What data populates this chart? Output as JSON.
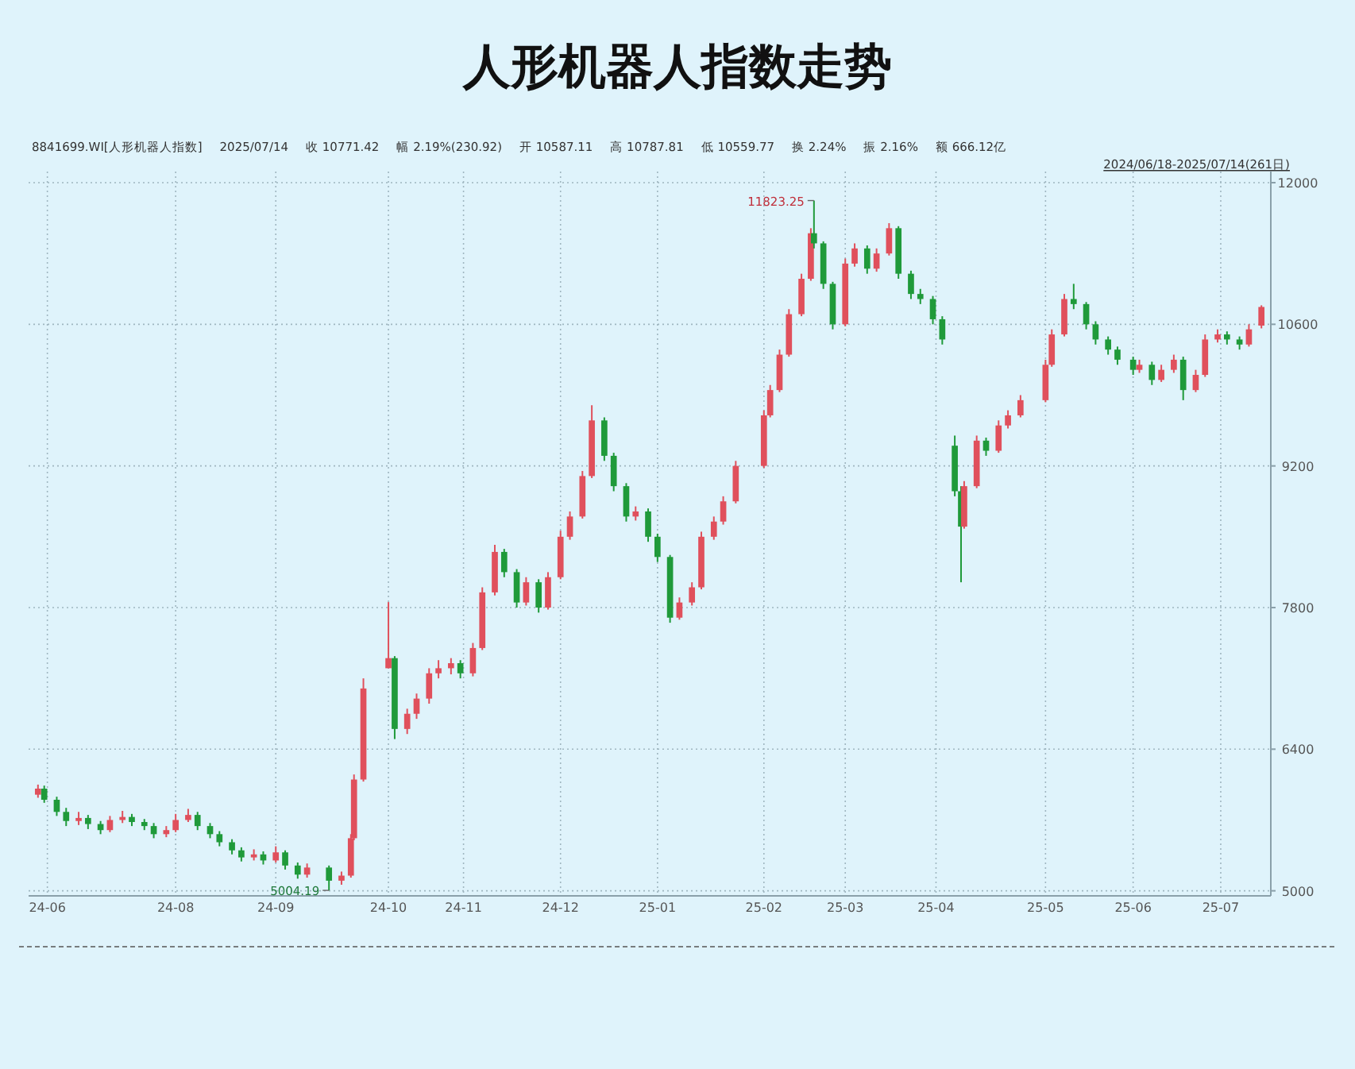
{
  "chart_data": {
    "type": "candlestick",
    "title": "人形机器人指数走势",
    "annotations": [
      "8841699.WI[人形机器人指数]",
      "2025/07/14",
      "收 10771.42",
      "幅 2.19%(230.92)",
      "开 10587.11",
      "高 10787.81",
      "低 10559.77",
      "换 2.24%",
      "振 2.16%",
      "额 666.12亿",
      "2024/06/18-2025/07/14(261日)",
      {
        "text": "11823.25",
        "x": "2025-02-21",
        "y": 11823.25
      },
      {
        "text": "5004.19",
        "x": "2024-09-19",
        "y": 5004.19
      }
    ],
    "colors": [
      "#e0505c",
      "#1f9a3a",
      "#1f9a3a",
      "#1f9a3a",
      "#e0505c",
      "#1f9a3a",
      "#1f9a3a",
      "#e0505c",
      "#e0505c",
      "#1f9a3a",
      "#1f9a3a",
      "#1f9a3a",
      "#e0505c",
      "#e0505c",
      "#e0505c",
      "#1f9a3a",
      "#1f9a3a",
      "#1f9a3a",
      "#1f9a3a",
      "#1f9a3a",
      "#e0505c",
      "#1f9a3a",
      "#e0505c",
      "#1f9a3a",
      "#1f9a3a",
      "#e0505c",
      "#1f9a3a",
      "#e0505c",
      "#e0505c",
      "#e0505c",
      "#e0505c",
      "#e0505c",
      "#1f9a3a",
      "#e0505c",
      "#e0505c",
      "#e0505c",
      "#e0505c",
      "#e0505c",
      "#1f9a3a",
      "#e0505c",
      "#e0505c",
      "#e0505c",
      "#1f9a3a",
      "#1f9a3a",
      "#e0505c",
      "#1f9a3a",
      "#e0505c",
      "#e0505c",
      "#e0505c",
      "#e0505c",
      "#e0505c",
      "#1f9a3a",
      "#1f9a3a",
      "#1f9a3a",
      "#e0505c",
      "#1f9a3a",
      "#1f9a3a",
      "#1f9a3a",
      "#e0505c",
      "#e0505c",
      "#e0505c",
      "#e0505c",
      "#e0505c",
      "#e0505c",
      "#e0505c",
      "#e0505c",
      "#e0505c",
      "#e0505c",
      "#e0505c",
      "#e0505c",
      "#1f9a3a",
      "#1f9a3a",
      "#1f9a3a",
      "#e0505c",
      "#e0505c",
      "#1f9a3a",
      "#e0505c",
      "#e0505c",
      "#1f9a3a",
      "#1f9a3a",
      "#1f9a3a",
      "#1f9a3a",
      "#1f9a3a",
      "#1f9a3a",
      "#1f9a3a",
      "#e0505c",
      "#e0505c",
      "#1f9a3a",
      "#e0505c",
      "#e0505c",
      "#e0505c",
      "#e0505c",
      "#e0505c",
      "#e0505c",
      "#1f9a3a",
      "#1f9a3a",
      "#1f9a3a",
      "#1f9a3a",
      "#1f9a3a",
      "#1f9a3a",
      "#e0505c",
      "#1f9a3a",
      "#e0505c",
      "#e0505c",
      "#1f9a3a",
      "#e0505c",
      "#e0505c",
      "#e0505c",
      "#1f9a3a",
      "#1f9a3a",
      "#e0505c",
      "#e0505c"
    ],
    "x": [
      "2024-06-18",
      "2024-06-20",
      "2024-06-24",
      "2024-06-27",
      "2024-07-01",
      "2024-07-04",
      "2024-07-08",
      "2024-07-11",
      "2024-07-15",
      "2024-07-18",
      "2024-07-22",
      "2024-07-25",
      "2024-07-29",
      "2024-08-01",
      "2024-08-05",
      "2024-08-08",
      "2024-08-12",
      "2024-08-15",
      "2024-08-19",
      "2024-08-22",
      "2024-08-26",
      "2024-08-29",
      "2024-09-02",
      "2024-09-05",
      "2024-09-09",
      "2024-09-12",
      "2024-09-19",
      "2024-09-23",
      "2024-09-26",
      "2024-09-27",
      "2024-09-30",
      "2024-10-08",
      "2024-10-10",
      "2024-10-14",
      "2024-10-17",
      "2024-10-21",
      "2024-10-24",
      "2024-10-28",
      "2024-10-31",
      "2024-11-04",
      "2024-11-07",
      "2024-11-11",
      "2024-11-14",
      "2024-11-18",
      "2024-11-21",
      "2024-11-25",
      "2024-11-28",
      "2024-12-02",
      "2024-12-05",
      "2024-12-09",
      "2024-12-12",
      "2024-12-16",
      "2024-12-19",
      "2024-12-23",
      "2024-12-26",
      "2024-12-30",
      "2025-01-02",
      "2025-01-06",
      "2025-01-09",
      "2025-01-13",
      "2025-01-16",
      "2025-01-20",
      "2025-01-23",
      "2025-01-27",
      "2025-02-05",
      "2025-02-07",
      "2025-02-10",
      "2025-02-13",
      "2025-02-17",
      "2025-02-20",
      "2025-02-21",
      "2025-02-24",
      "2025-02-27",
      "2025-03-03",
      "2025-03-06",
      "2025-03-10",
      "2025-03-13",
      "2025-03-17",
      "2025-03-20",
      "2025-03-24",
      "2025-03-27",
      "2025-03-31",
      "2025-04-03",
      "2025-04-07",
      "2025-04-09",
      "2025-04-10",
      "2025-04-14",
      "2025-04-17",
      "2025-04-21",
      "2025-04-24",
      "2025-04-28",
      "2025-05-06",
      "2025-05-08",
      "2025-05-12",
      "2025-05-15",
      "2025-05-19",
      "2025-05-22",
      "2025-05-26",
      "2025-05-29",
      "2025-06-03",
      "2025-06-05",
      "2025-06-09",
      "2025-06-12",
      "2025-06-16",
      "2025-06-19",
      "2025-06-23",
      "2025-06-26",
      "2025-06-30",
      "2025-07-03",
      "2025-07-07",
      "2025-07-10",
      "2025-07-14"
    ],
    "ohlc": [
      [
        5950,
        6050,
        5920,
        6010
      ],
      [
        6010,
        6040,
        5870,
        5900
      ],
      [
        5900,
        5930,
        5740,
        5780
      ],
      [
        5780,
        5820,
        5640,
        5690
      ],
      [
        5690,
        5780,
        5650,
        5720
      ],
      [
        5720,
        5750,
        5610,
        5660
      ],
      [
        5660,
        5690,
        5560,
        5600
      ],
      [
        5600,
        5740,
        5580,
        5700
      ],
      [
        5700,
        5790,
        5670,
        5730
      ],
      [
        5730,
        5760,
        5640,
        5680
      ],
      [
        5680,
        5710,
        5600,
        5640
      ],
      [
        5640,
        5670,
        5520,
        5560
      ],
      [
        5560,
        5640,
        5530,
        5600
      ],
      [
        5600,
        5760,
        5580,
        5700
      ],
      [
        5700,
        5810,
        5680,
        5750
      ],
      [
        5750,
        5780,
        5600,
        5640
      ],
      [
        5640,
        5670,
        5520,
        5560
      ],
      [
        5560,
        5590,
        5440,
        5480
      ],
      [
        5480,
        5510,
        5360,
        5400
      ],
      [
        5400,
        5430,
        5290,
        5330
      ],
      [
        5330,
        5410,
        5300,
        5360
      ],
      [
        5360,
        5390,
        5260,
        5300
      ],
      [
        5300,
        5440,
        5280,
        5380
      ],
      [
        5380,
        5400,
        5210,
        5250
      ],
      [
        5250,
        5280,
        5120,
        5160
      ],
      [
        5160,
        5270,
        5130,
        5230
      ],
      [
        5230,
        5250,
        5004.19,
        5100
      ],
      [
        5100,
        5190,
        5060,
        5150
      ],
      [
        5150,
        5560,
        5130,
        5520
      ],
      [
        5520,
        6150,
        5500,
        6100
      ],
      [
        6100,
        7100,
        6080,
        7000
      ],
      [
        7200,
        7854,
        7200,
        7300
      ],
      [
        7300,
        7320,
        6500,
        6600
      ],
      [
        6600,
        6800,
        6550,
        6750
      ],
      [
        6750,
        6950,
        6700,
        6900
      ],
      [
        6900,
        7200,
        6850,
        7150
      ],
      [
        7150,
        7280,
        7100,
        7200
      ],
      [
        7200,
        7300,
        7140,
        7250
      ],
      [
        7250,
        7280,
        7100,
        7150
      ],
      [
        7150,
        7450,
        7120,
        7400
      ],
      [
        7400,
        8000,
        7380,
        7950
      ],
      [
        7950,
        8420,
        7920,
        8350
      ],
      [
        8350,
        8380,
        8100,
        8150
      ],
      [
        8150,
        8180,
        7800,
        7850
      ],
      [
        7850,
        8100,
        7820,
        8050
      ],
      [
        8050,
        8080,
        7750,
        7800
      ],
      [
        7800,
        8150,
        7780,
        8100
      ],
      [
        8100,
        8560,
        8080,
        8500
      ],
      [
        8500,
        8750,
        8470,
        8700
      ],
      [
        8700,
        9150,
        8680,
        9100
      ],
      [
        9100,
        9800,
        9080,
        9650
      ],
      [
        9650,
        9680,
        9250,
        9300
      ],
      [
        9300,
        9330,
        8950,
        9000
      ],
      [
        9000,
        9030,
        8650,
        8700
      ],
      [
        8700,
        8800,
        8660,
        8750
      ],
      [
        8750,
        8780,
        8450,
        8500
      ],
      [
        8500,
        8530,
        8250,
        8300
      ],
      [
        8300,
        8320,
        7650,
        7700
      ],
      [
        7700,
        7900,
        7680,
        7850
      ],
      [
        7850,
        8050,
        7820,
        8000
      ],
      [
        8000,
        8550,
        7980,
        8500
      ],
      [
        8500,
        8700,
        8470,
        8650
      ],
      [
        8650,
        8900,
        8620,
        8850
      ],
      [
        8850,
        9250,
        8830,
        9200
      ],
      [
        9200,
        9750,
        9180,
        9700
      ],
      [
        9700,
        10000,
        9680,
        9950
      ],
      [
        9950,
        10350,
        9930,
        10300
      ],
      [
        10300,
        10750,
        10280,
        10700
      ],
      [
        10700,
        11100,
        10680,
        11050
      ],
      [
        11050,
        11550,
        11030,
        11500
      ],
      [
        11500,
        11823.25,
        11350,
        11400
      ],
      [
        11400,
        11420,
        10950,
        11000
      ],
      [
        11000,
        11020,
        10550,
        10600
      ],
      [
        10600,
        11250,
        10580,
        11200
      ],
      [
        11200,
        11400,
        11170,
        11350
      ],
      [
        11350,
        11380,
        11100,
        11150
      ],
      [
        11150,
        11350,
        11120,
        11300
      ],
      [
        11300,
        11600,
        11280,
        11550
      ],
      [
        11550,
        11570,
        11050,
        11100
      ],
      [
        11100,
        11130,
        10850,
        10900
      ],
      [
        10900,
        10950,
        10800,
        10850
      ],
      [
        10850,
        10880,
        10600,
        10650
      ],
      [
        10650,
        10680,
        10400,
        10450
      ],
      [
        9400,
        9500,
        8900,
        8950
      ],
      [
        8950,
        9000,
        8050,
        8600
      ],
      [
        8600,
        9050,
        8580,
        9000
      ],
      [
        9000,
        9500,
        8980,
        9450
      ],
      [
        9450,
        9480,
        9300,
        9350
      ],
      [
        9350,
        9650,
        9330,
        9600
      ],
      [
        9600,
        9750,
        9570,
        9700
      ],
      [
        9700,
        9900,
        9680,
        9850
      ],
      [
        9850,
        10250,
        9830,
        10200
      ],
      [
        10200,
        10550,
        10180,
        10500
      ],
      [
        10500,
        10900,
        10480,
        10850
      ],
      [
        10850,
        11000,
        10750,
        10800
      ],
      [
        10800,
        10820,
        10550,
        10600
      ],
      [
        10600,
        10630,
        10400,
        10450
      ],
      [
        10450,
        10480,
        10300,
        10350
      ],
      [
        10350,
        10380,
        10200,
        10250
      ],
      [
        10250,
        10280,
        10100,
        10150
      ],
      [
        10150,
        10250,
        10120,
        10200
      ],
      [
        10200,
        10230,
        10000,
        10050
      ],
      [
        10050,
        10200,
        10030,
        10150
      ],
      [
        10150,
        10300,
        10120,
        10250
      ],
      [
        10250,
        10280,
        9850,
        9950
      ],
      [
        9950,
        10150,
        9930,
        10100
      ],
      [
        10100,
        10500,
        10080,
        10450
      ],
      [
        10450,
        10550,
        10420,
        10500
      ],
      [
        10500,
        10530,
        10400,
        10450
      ],
      [
        10450,
        10480,
        10350,
        10400
      ],
      [
        10400,
        10600,
        10380,
        10550
      ],
      [
        10587.11,
        10787.81,
        10559.77,
        10771.42
      ]
    ],
    "xlim": [
      "2024-06-15",
      "2025-07-17"
    ],
    "xticks": [
      {
        "value": "2024-06-21",
        "label": "24-06"
      },
      {
        "value": "2024-08-01",
        "label": "24-08"
      },
      {
        "value": "2024-09-02",
        "label": "24-09"
      },
      {
        "value": "2024-10-08",
        "label": "24-10"
      },
      {
        "value": "2024-11-01",
        "label": "24-11"
      },
      {
        "value": "2024-12-02",
        "label": "24-12"
      },
      {
        "value": "2025-01-02",
        "label": "25-01"
      },
      {
        "value": "2025-02-05",
        "label": "25-02"
      },
      {
        "value": "2025-03-03",
        "label": "25-03"
      },
      {
        "value": "2025-04-01",
        "label": "25-04"
      },
      {
        "value": "2025-05-06",
        "label": "25-05"
      },
      {
        "value": "2025-06-03",
        "label": "25-06"
      },
      {
        "value": "2025-07-01",
        "label": "25-07"
      }
    ],
    "ylim": [
      4950,
      12110
    ],
    "yticks": [
      5000,
      6400,
      7800,
      9200,
      10600,
      12000
    ],
    "grid": true
  }
}
